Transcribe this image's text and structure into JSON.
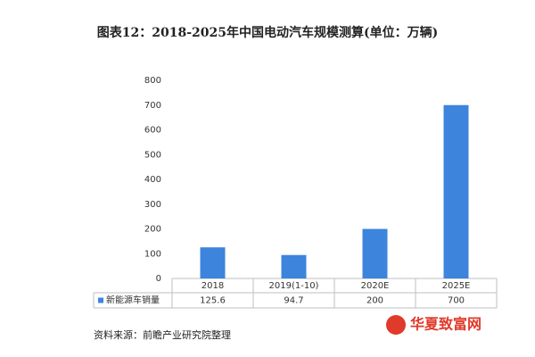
{
  "chart_data": {
    "type": "bar",
    "title": "图表12：2018-2025年中国电动汽车规模测算(单位：万辆)",
    "categories": [
      "2018",
      "2019(1-10)",
      "2020E",
      "2025E"
    ],
    "series": [
      {
        "name": "新能源车销量",
        "color": "#3d84dc",
        "values": [
          125.6,
          94.7,
          200,
          700
        ]
      }
    ],
    "ylim": [
      0,
      800
    ],
    "yticks": [
      0,
      100,
      200,
      300,
      400,
      500,
      600,
      700,
      800
    ],
    "grid": false,
    "source": "资料来源：前瞻产业研究院整理",
    "watermark": "华夏致富网"
  }
}
